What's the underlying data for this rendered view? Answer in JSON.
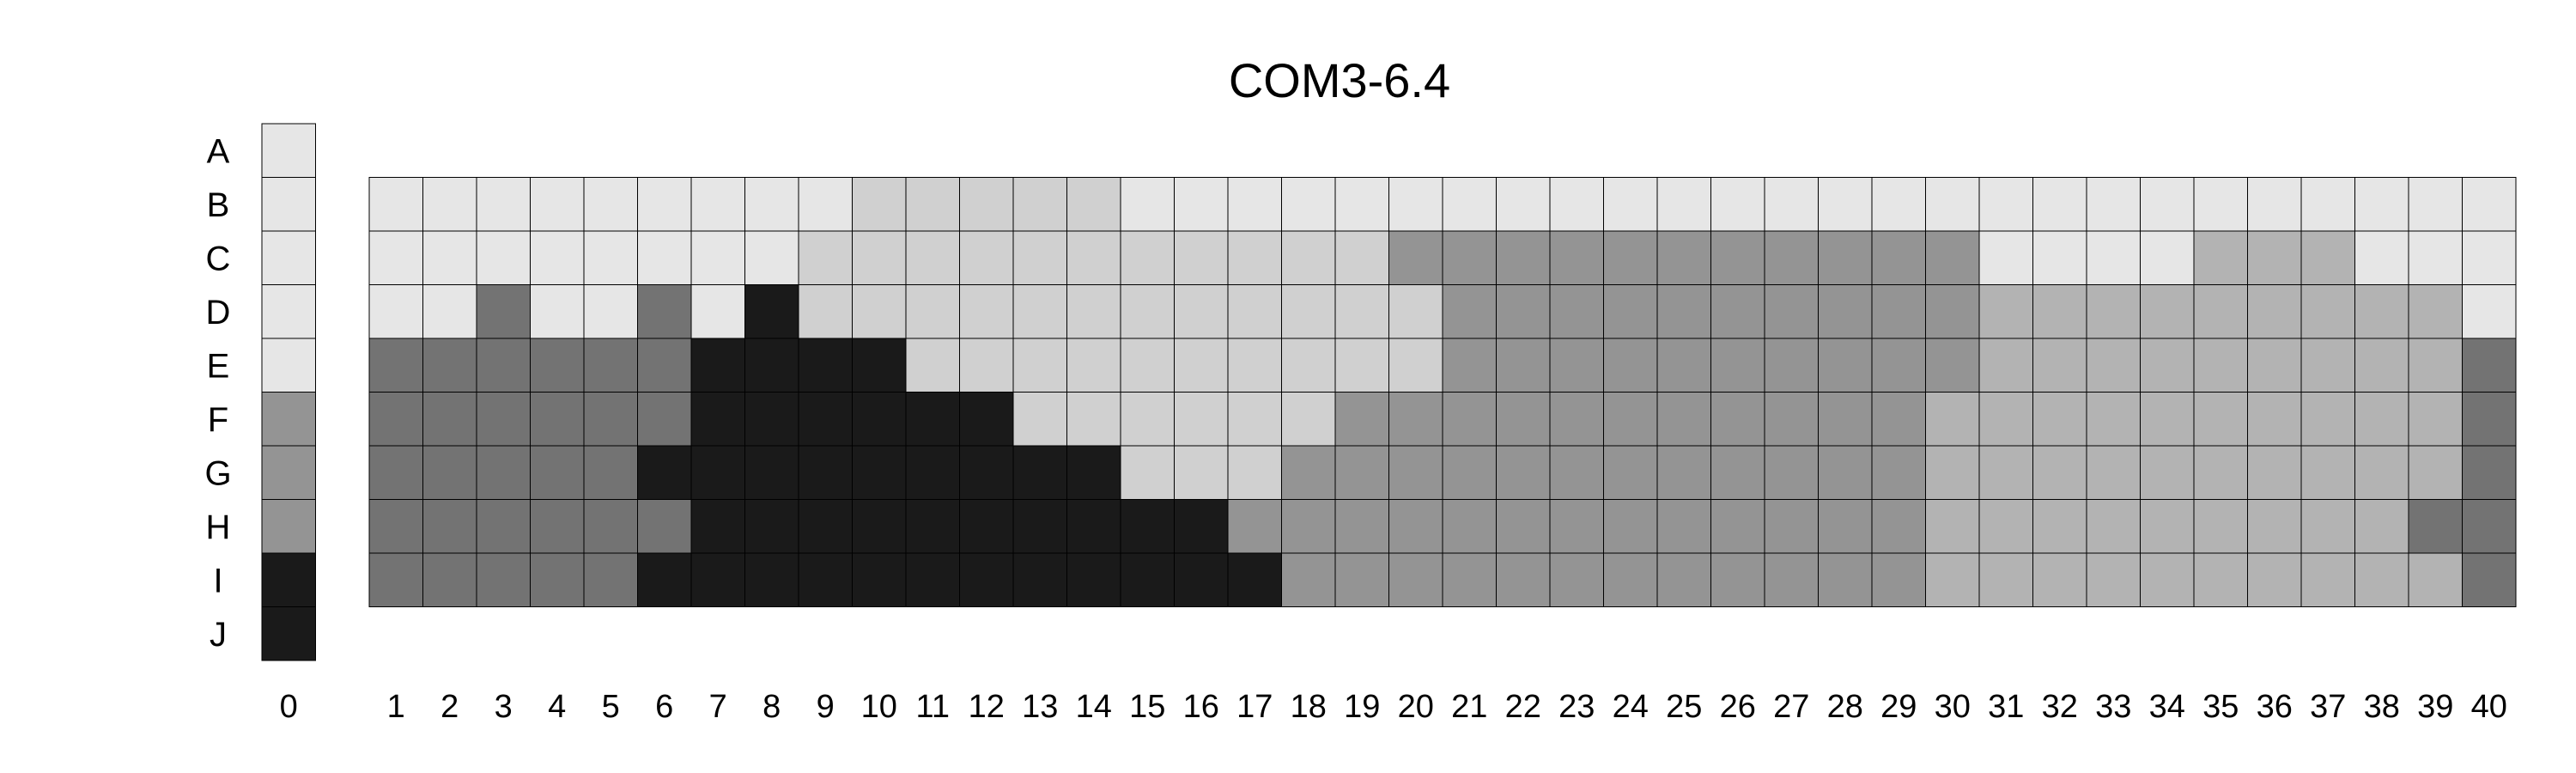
{
  "chart_data": {
    "type": "heatmap",
    "title": "COM3-6.4",
    "rows": [
      "A",
      "B",
      "C",
      "D",
      "E",
      "F",
      "G",
      "H",
      "I",
      "J"
    ],
    "columns": [
      "0",
      "1",
      "2",
      "3",
      "4",
      "5",
      "6",
      "7",
      "8",
      "9",
      "10",
      "11",
      "12",
      "13",
      "14",
      "15",
      "16",
      "17",
      "18",
      "19",
      "20",
      "21",
      "22",
      "23",
      "24",
      "25",
      "26",
      "27",
      "28",
      "29",
      "30",
      "31",
      "32",
      "33",
      "34",
      "35",
      "36",
      "37",
      "38",
      "39",
      "40"
    ],
    "palette": [
      "#e6e6e6",
      "#d0d0d0",
      "#b3b3b3",
      "#949494",
      "#737373",
      "#1a1a1a"
    ],
    "reference_column": {
      "label": "0",
      "rows": [
        "A",
        "B",
        "C",
        "D",
        "E",
        "F",
        "G",
        "H",
        "I",
        "J"
      ],
      "values": [
        0,
        0,
        0,
        0,
        0,
        3,
        3,
        3,
        5,
        5
      ]
    },
    "grid": {
      "rows": [
        "B",
        "C",
        "D",
        "E",
        "F",
        "G",
        "H",
        "I"
      ],
      "values": [
        [
          0,
          0,
          0,
          0,
          0,
          0,
          0,
          0,
          0,
          1,
          1,
          1,
          1,
          1,
          0,
          0,
          0,
          0,
          0,
          0,
          0,
          0,
          0,
          0,
          0,
          0,
          0,
          0,
          0,
          0,
          0,
          0,
          0,
          0,
          0,
          0,
          0,
          0,
          0,
          0
        ],
        [
          0,
          0,
          0,
          0,
          0,
          0,
          0,
          0,
          1,
          1,
          1,
          1,
          1,
          1,
          1,
          1,
          1,
          1,
          1,
          3,
          3,
          3,
          3,
          3,
          3,
          3,
          3,
          3,
          3,
          3,
          0,
          0,
          0,
          0,
          2,
          2,
          2,
          0,
          0,
          0
        ],
        [
          0,
          0,
          4,
          0,
          0,
          4,
          0,
          5,
          1,
          1,
          1,
          1,
          1,
          1,
          1,
          1,
          1,
          1,
          1,
          1,
          3,
          3,
          3,
          3,
          3,
          3,
          3,
          3,
          3,
          3,
          2,
          2,
          2,
          2,
          2,
          2,
          2,
          2,
          2,
          0
        ],
        [
          4,
          4,
          4,
          4,
          4,
          4,
          5,
          5,
          5,
          5,
          1,
          1,
          1,
          1,
          1,
          1,
          1,
          1,
          1,
          1,
          3,
          3,
          3,
          3,
          3,
          3,
          3,
          3,
          3,
          3,
          2,
          2,
          2,
          2,
          2,
          2,
          2,
          2,
          2,
          4
        ],
        [
          4,
          4,
          4,
          4,
          4,
          4,
          5,
          5,
          5,
          5,
          5,
          5,
          1,
          1,
          1,
          1,
          1,
          1,
          3,
          3,
          3,
          3,
          3,
          3,
          3,
          3,
          3,
          3,
          3,
          2,
          2,
          2,
          2,
          2,
          2,
          2,
          2,
          2,
          2,
          4
        ],
        [
          4,
          4,
          4,
          4,
          4,
          5,
          5,
          5,
          5,
          5,
          5,
          5,
          5,
          5,
          1,
          1,
          1,
          3,
          3,
          3,
          3,
          3,
          3,
          3,
          3,
          3,
          3,
          3,
          3,
          2,
          2,
          2,
          2,
          2,
          2,
          2,
          2,
          2,
          2,
          4
        ],
        [
          4,
          4,
          4,
          4,
          4,
          4,
          5,
          5,
          5,
          5,
          5,
          5,
          5,
          5,
          5,
          5,
          3,
          3,
          3,
          3,
          3,
          3,
          3,
          3,
          3,
          3,
          3,
          3,
          3,
          2,
          2,
          2,
          2,
          2,
          2,
          2,
          2,
          2,
          4,
          4
        ],
        [
          4,
          4,
          4,
          4,
          4,
          5,
          5,
          5,
          5,
          5,
          5,
          5,
          5,
          5,
          5,
          5,
          5,
          3,
          3,
          3,
          3,
          3,
          3,
          3,
          3,
          3,
          3,
          3,
          3,
          2,
          2,
          2,
          2,
          2,
          2,
          2,
          2,
          2,
          2,
          4
        ]
      ]
    }
  }
}
